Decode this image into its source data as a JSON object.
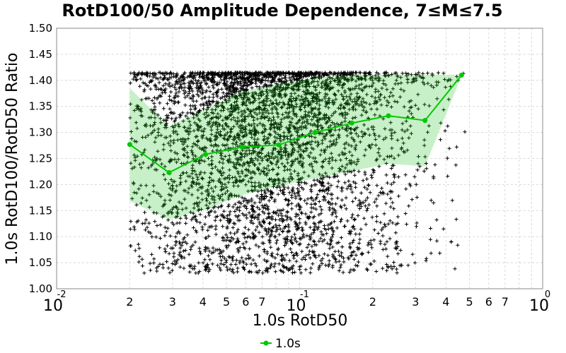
{
  "chart_data": {
    "type": "line",
    "title": "RotD100/50 Amplitude Dependence, 7≤M≤7.5",
    "xlabel": "1.0s RotD50",
    "ylabel": "1.0s RotD100/RotD50 Ratio",
    "xscale": "log",
    "xlim": [
      0.01,
      1.0
    ],
    "ylim": [
      1.0,
      1.5
    ],
    "grid": true,
    "legend_position": "bottom-center",
    "colors": {
      "line": "#00c800",
      "band": "#c8f0c8",
      "scatter": "#000000",
      "dense_scatter": "#003300",
      "grid": "#d8d8d8"
    },
    "y_ticks": [
      "1.00",
      "1.05",
      "1.10",
      "1.15",
      "1.20",
      "1.25",
      "1.30",
      "1.35",
      "1.40",
      "1.45",
      "1.50"
    ],
    "x_major_ticks": [
      {
        "value": 0.01,
        "base": "10",
        "exp": "-2"
      },
      {
        "value": 0.1,
        "base": "10",
        "exp": "-1"
      },
      {
        "value": 1.0,
        "base": "10",
        "exp": "0"
      }
    ],
    "x_minor_ticks": [
      {
        "value": 0.02,
        "label": "2"
      },
      {
        "value": 0.03,
        "label": "3"
      },
      {
        "value": 0.04,
        "label": "4"
      },
      {
        "value": 0.05,
        "label": "5"
      },
      {
        "value": 0.06,
        "label": "6"
      },
      {
        "value": 0.07,
        "label": "7"
      },
      {
        "value": 0.2,
        "label": "2"
      },
      {
        "value": 0.3,
        "label": "3"
      },
      {
        "value": 0.4,
        "label": "4"
      },
      {
        "value": 0.5,
        "label": "5"
      },
      {
        "value": 0.6,
        "label": "6"
      },
      {
        "value": 0.7,
        "label": "7"
      }
    ],
    "series": [
      {
        "name": "1.0s",
        "x": [
          0.02,
          0.029,
          0.041,
          0.058,
          0.082,
          0.116,
          0.164,
          0.232,
          0.328,
          0.464
        ],
        "y": [
          1.277,
          1.223,
          1.258,
          1.272,
          1.276,
          1.3,
          1.318,
          1.332,
          1.323,
          1.41
        ],
        "upper": [
          1.385,
          1.312,
          1.345,
          1.378,
          1.393,
          1.405,
          1.41,
          1.411,
          1.411,
          1.411
        ],
        "lower": [
          1.168,
          1.133,
          1.152,
          1.18,
          1.197,
          1.212,
          1.226,
          1.24,
          1.235,
          1.409
        ]
      }
    ]
  },
  "legend": {
    "label": "1.0s"
  }
}
